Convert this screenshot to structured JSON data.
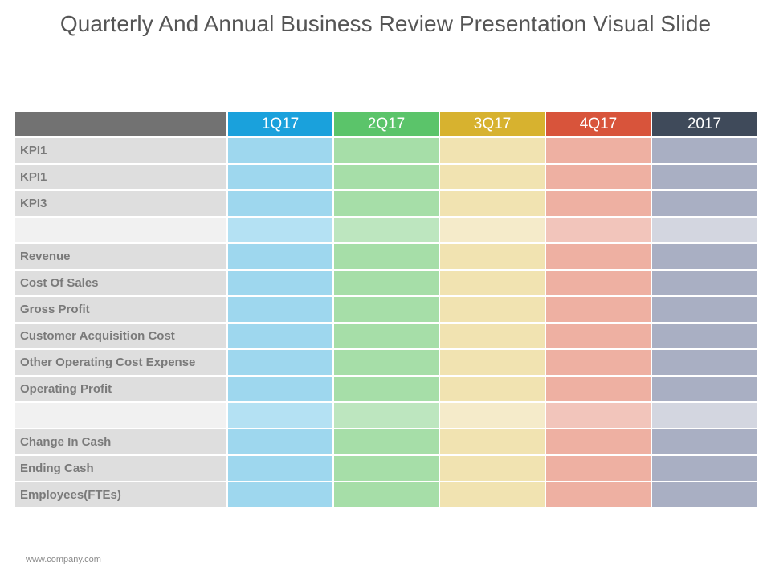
{
  "slide": {
    "title": "Quarterly And Annual Business Review Presentation Visual Slide",
    "footer": "www.company.com"
  },
  "colors": {
    "header_corner": "#727272",
    "label_cell": "#dedede",
    "blank_label_cell": "#f1f1f1"
  },
  "table": {
    "columns": [
      {
        "label": "1Q17",
        "header_color": "#1aa1dc",
        "cell_color": "#9ed7ee",
        "blank_color": "#b4e1f3"
      },
      {
        "label": "2Q17",
        "header_color": "#5bc46a",
        "cell_color": "#a6dea8",
        "blank_color": "#bde6bf"
      },
      {
        "label": "3Q17",
        "header_color": "#d7b22f",
        "cell_color": "#f1e3b1",
        "blank_color": "#f5ebca"
      },
      {
        "label": "4Q17",
        "header_color": "#d8543b",
        "cell_color": "#eeb0a2",
        "blank_color": "#f2c5bb"
      },
      {
        "label": "2017",
        "header_color": "#3f4a5a",
        "cell_color": "#a9afc3",
        "blank_color": "#d3d6e0"
      }
    ],
    "rows": [
      {
        "label": "KPI1",
        "blank": false
      },
      {
        "label": "KPI1",
        "blank": false
      },
      {
        "label": "KPI3",
        "blank": false
      },
      {
        "label": "",
        "blank": true
      },
      {
        "label": "Revenue",
        "blank": false
      },
      {
        "label": "Cost Of Sales",
        "blank": false
      },
      {
        "label": "Gross Profit",
        "blank": false
      },
      {
        "label": "Customer Acquisition Cost",
        "blank": false
      },
      {
        "label": "Other Operating Cost Expense",
        "blank": false
      },
      {
        "label": "Operating Profit",
        "blank": false
      },
      {
        "label": "",
        "blank": true
      },
      {
        "label": "Change In Cash",
        "blank": false
      },
      {
        "label": "Ending Cash",
        "blank": false
      },
      {
        "label": "Employees(FTEs)",
        "blank": false
      }
    ]
  }
}
